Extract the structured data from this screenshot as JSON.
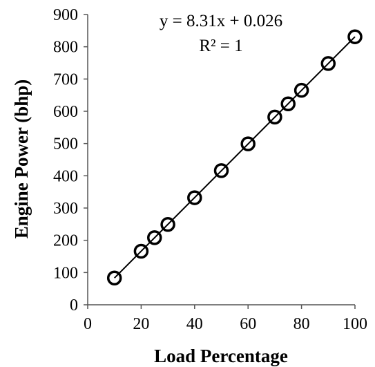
{
  "chart_data": {
    "type": "scatter",
    "title": "",
    "xlabel": "Load Percentage",
    "ylabel": "Engine Power (bhp)",
    "xlim": [
      0,
      100
    ],
    "ylim": [
      0,
      900
    ],
    "x_ticks": [
      0,
      20,
      40,
      60,
      80,
      100
    ],
    "y_ticks": [
      0,
      100,
      200,
      300,
      400,
      500,
      600,
      700,
      800,
      900
    ],
    "grid": false,
    "legend": "none",
    "series": [
      {
        "x": [
          10,
          20,
          25,
          30,
          40,
          50,
          60,
          70,
          75,
          80,
          90,
          100
        ],
        "y": [
          83,
          166,
          208,
          249,
          332,
          416,
          499,
          582,
          623,
          665,
          748,
          831
        ],
        "marker": "open-circle",
        "color": "#000000"
      }
    ],
    "trendline": {
      "type": "linear",
      "slope": 8.31,
      "intercept": 0.026,
      "equation": "y = 8.31x + 0.026",
      "r_squared": "R² = 1"
    }
  }
}
